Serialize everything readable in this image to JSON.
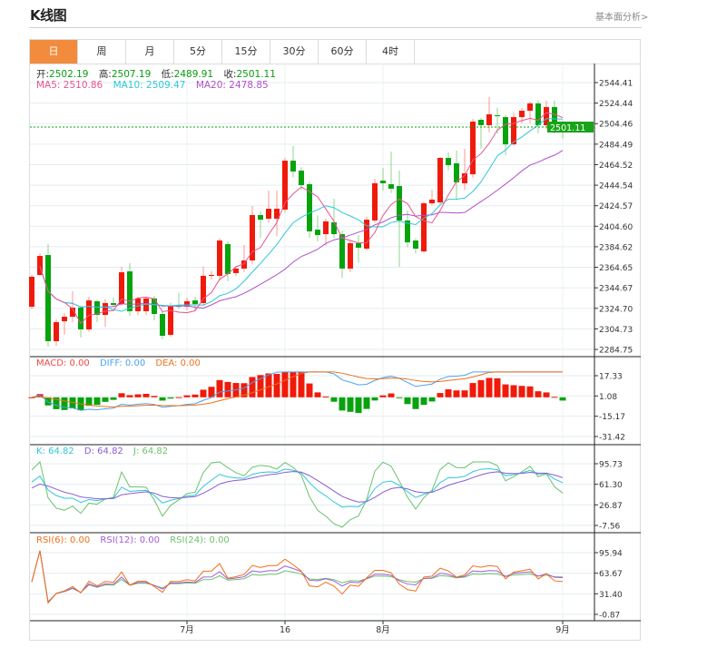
{
  "header": {
    "title": "K线图",
    "link": "基本面分析>"
  },
  "tabs": [
    {
      "label": "日",
      "active": true
    },
    {
      "label": "周"
    },
    {
      "label": "月"
    },
    {
      "label": "5分"
    },
    {
      "label": "15分"
    },
    {
      "label": "30分"
    },
    {
      "label": "60分"
    },
    {
      "label": "4时"
    }
  ],
  "ohlc": {
    "open_label": "开:",
    "open": "2502.19",
    "high_label": "高:",
    "high": "2507.19",
    "low_label": "低:",
    "low": "2489.91",
    "close_label": "收:",
    "close": "2501.11"
  },
  "ma": {
    "ma5": "MA5: 2510.86",
    "ma10": "MA10: 2509.47",
    "ma20": "MA20: 2478.85"
  },
  "macd": {
    "macd": "MACD: 0.00",
    "diff": "DIFF: 0.00",
    "dea": "DEA: 0.00"
  },
  "kdj": {
    "k": "K: 64.82",
    "d": "D: 64.82",
    "j": "J: 64.82"
  },
  "rsi": {
    "r6": "RSI(6): 0.00",
    "r12": "RSI(12): 0.00",
    "r24": "RSI(24): 0.00"
  },
  "colors": {
    "up": "#f01a0a",
    "down": "#07a30d",
    "accent": "#f28b3c",
    "ma5": "#e8538f",
    "ma10": "#2ec7d9",
    "ma20": "#b04fc8",
    "diff": "#4aa3f0",
    "dea": "#f0701a",
    "rsi6": "#f0701a",
    "rsi12": "#a35bd6",
    "rsi24": "#6cc26c"
  },
  "chart_data": {
    "type": "candlestick",
    "current_price": "2501.11",
    "price_axis": {
      "ticks": [
        "2544.41",
        "2524.44",
        "2504.46",
        "2484.49",
        "2464.52",
        "2444.54",
        "2424.57",
        "2404.60",
        "2384.62",
        "2364.65",
        "2344.67",
        "2324.70",
        "2304.73",
        "2284.75"
      ],
      "range": [
        2284.75,
        2544.41
      ]
    },
    "macd_axis": {
      "ticks": [
        "17.33",
        "1.08",
        "-15.17",
        "-31.42"
      ],
      "range": [
        -31.42,
        17.33
      ]
    },
    "kdj_axis": {
      "ticks": [
        "95.73",
        "61.30",
        "26.87",
        "-7.56"
      ],
      "range": [
        -7.56,
        95.73
      ]
    },
    "rsi_axis": {
      "ticks": [
        "95.94",
        "63.67",
        "31.40",
        "-0.87"
      ],
      "range": [
        -0.87,
        95.94
      ]
    },
    "x_labels": [
      {
        "index": 19,
        "label": "7月"
      },
      {
        "index": 31,
        "label": "16"
      },
      {
        "index": 43,
        "label": "8月"
      },
      {
        "index": 65,
        "label": "9月"
      }
    ],
    "candles": [
      [
        2326.3,
        2357,
        2324,
        2355.4
      ],
      [
        2357.2,
        2378.4,
        2356,
        2375.7
      ],
      [
        2376.6,
        2387.2,
        2287.4,
        2292.7
      ],
      [
        2292.7,
        2313.9,
        2288.3,
        2311.3
      ],
      [
        2312.1,
        2320.1,
        2298.9,
        2316.5
      ],
      [
        2316.5,
        2341.3,
        2311.3,
        2325.4
      ],
      [
        2325.4,
        2327,
        2296.2,
        2304.2
      ],
      [
        2304.2,
        2336.1,
        2302,
        2332.4
      ],
      [
        2331.6,
        2333,
        2311.3,
        2318.3
      ],
      [
        2318.3,
        2333.4,
        2306.8,
        2329.8
      ],
      [
        2329.8,
        2335.2,
        2326,
        2328.0
      ],
      [
        2328.9,
        2365.1,
        2327,
        2359.8
      ],
      [
        2360.7,
        2368.7,
        2317.4,
        2321.9
      ],
      [
        2321.9,
        2336,
        2318,
        2334.3
      ],
      [
        2321.9,
        2336,
        2318,
        2334.3
      ],
      [
        2334.3,
        2337,
        2313,
        2319.2
      ],
      [
        2319.2,
        2322,
        2294.6,
        2298.0
      ],
      [
        2298.9,
        2330,
        2297,
        2327.1
      ],
      [
        2327.1,
        2339.6,
        2324,
        2326.3
      ],
      [
        2326.3,
        2335,
        2323,
        2331.6
      ],
      [
        2332.4,
        2336,
        2322,
        2328.9
      ],
      [
        2329.8,
        2365.1,
        2327,
        2356.3
      ],
      [
        2356.3,
        2361,
        2353,
        2357.2
      ],
      [
        2356.3,
        2393,
        2352,
        2390.7
      ],
      [
        2387.2,
        2390,
        2351,
        2358.1
      ],
      [
        2359.0,
        2366,
        2356,
        2363.4
      ],
      [
        2363.4,
        2386.3,
        2360,
        2371.3
      ],
      [
        2371.3,
        2424.3,
        2368,
        2415.5
      ],
      [
        2415.5,
        2419.0,
        2393.4,
        2411.0
      ],
      [
        2411.9,
        2439.3,
        2408,
        2421.6
      ],
      [
        2411.9,
        2439.3,
        2395,
        2421.6
      ],
      [
        2420.8,
        2471,
        2418,
        2468.4
      ],
      [
        2468.4,
        2482.6,
        2452,
        2457.8
      ],
      [
        2458.7,
        2462,
        2440,
        2444.6
      ],
      [
        2445.5,
        2448,
        2393.4,
        2399.6
      ],
      [
        2401.3,
        2415,
        2390,
        2396.0
      ],
      [
        2396.9,
        2412,
        2386,
        2409.3
      ],
      [
        2408.4,
        2431.4,
        2393,
        2396.9
      ],
      [
        2396.9,
        2400,
        2354.5,
        2363.4
      ],
      [
        2363.4,
        2391,
        2360,
        2388.1
      ],
      [
        2388.1,
        2396,
        2369,
        2383.7
      ],
      [
        2382.8,
        2414,
        2381,
        2411.0
      ],
      [
        2410.2,
        2450.8,
        2408,
        2446.4
      ],
      [
        2449.0,
        2461.4,
        2439,
        2446.4
      ],
      [
        2445.5,
        2477.3,
        2437,
        2441.1
      ],
      [
        2443.7,
        2458.7,
        2365.1,
        2410.2
      ],
      [
        2410.2,
        2420,
        2384,
        2388.9
      ],
      [
        2390.7,
        2393,
        2378,
        2382.8
      ],
      [
        2380.1,
        2428,
        2379,
        2426.9
      ],
      [
        2426.9,
        2440,
        2425,
        2430.5
      ],
      [
        2427.8,
        2472,
        2426,
        2471.1
      ],
      [
        2471.1,
        2476.4,
        2459,
        2464.0
      ],
      [
        2465.8,
        2478.2,
        2430,
        2447.3
      ],
      [
        2446.4,
        2480,
        2440,
        2456.1
      ],
      [
        2455.2,
        2509,
        2452,
        2506.4
      ],
      [
        2508.2,
        2510,
        2480,
        2502.9
      ],
      [
        2502.9,
        2530.3,
        2496,
        2513.5
      ],
      [
        2512.6,
        2520,
        2495,
        2511.7
      ],
      [
        2510.8,
        2513,
        2474,
        2484.3
      ],
      [
        2484.3,
        2515,
        2483,
        2510.8
      ],
      [
        2510.8,
        2520,
        2505,
        2517.0
      ],
      [
        2517.0,
        2526,
        2505,
        2524.1
      ],
      [
        2524.1,
        2527,
        2495,
        2502.9
      ],
      [
        2502.9,
        2527,
        2499,
        2520.6
      ],
      [
        2520.6,
        2527,
        2495,
        2502.9
      ],
      [
        2502.19,
        2507.19,
        2489.91,
        2501.11
      ]
    ]
  }
}
